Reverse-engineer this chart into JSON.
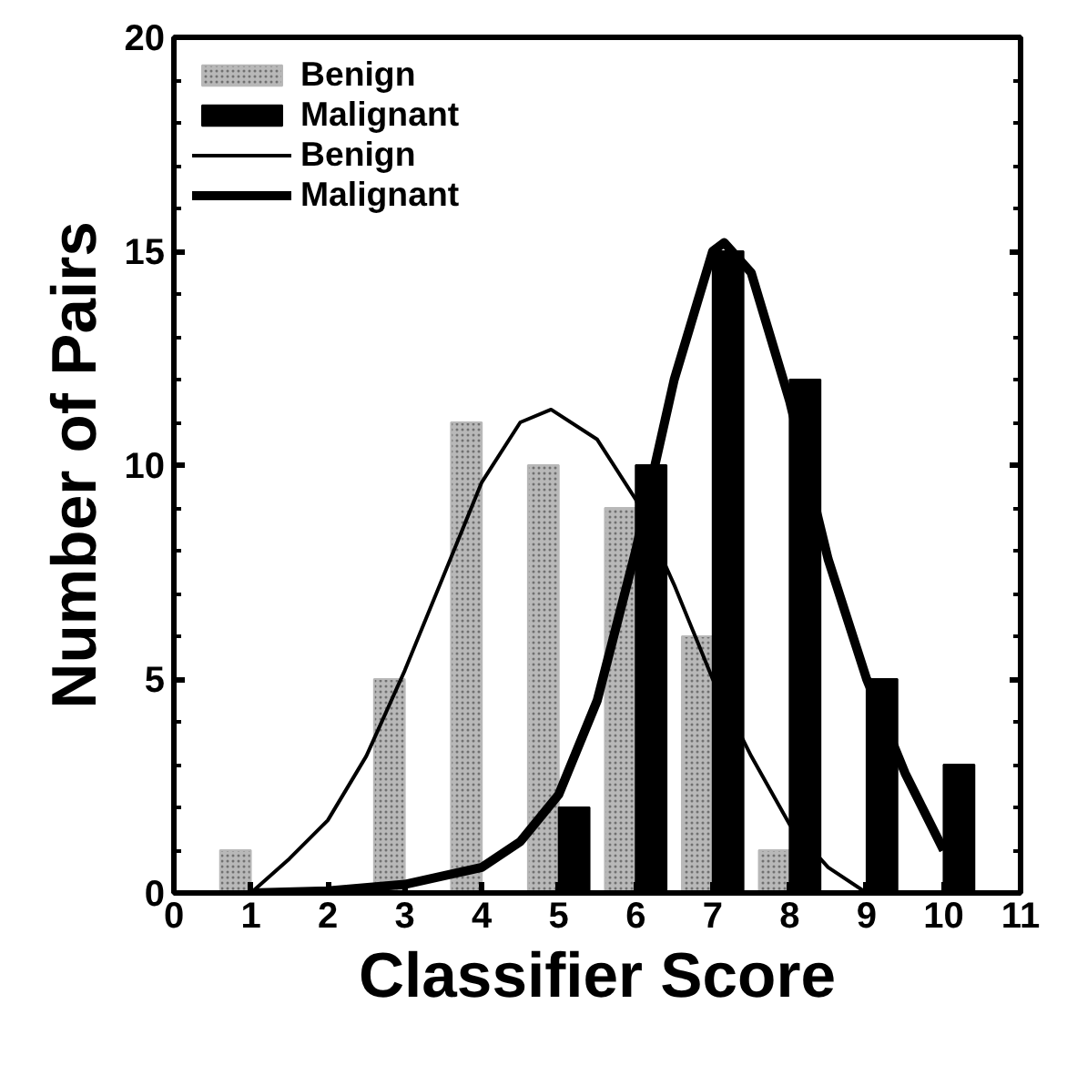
{
  "chart_data": {
    "type": "bar",
    "xlabel": "Classifier Score",
    "ylabel": "Number of Pairs",
    "xlim": [
      0,
      11
    ],
    "xticks": [
      0,
      1,
      2,
      3,
      4,
      5,
      6,
      7,
      8,
      9,
      10,
      11
    ],
    "ylim": [
      0,
      20
    ],
    "yticks": [
      0,
      5,
      10,
      15,
      20
    ],
    "grid": false,
    "legend": "top left",
    "series": [
      {
        "name": "Benign",
        "color": "#b8b8b8",
        "x": [
          1,
          2,
          3,
          4,
          5,
          6,
          7,
          8
        ],
        "values": [
          1,
          0,
          5,
          11,
          10,
          9,
          6,
          1
        ]
      },
      {
        "name": "Malignant",
        "color": "#000000",
        "x": [
          5,
          6,
          7,
          8,
          9,
          10
        ],
        "values": [
          2,
          10,
          15,
          12,
          5,
          3
        ]
      },
      {
        "name": "Benign",
        "type": "line",
        "color": "#000000",
        "x": [
          1,
          1.5,
          2,
          2.5,
          3,
          3.5,
          4,
          4.5,
          4.9,
          5.5,
          6,
          6.5,
          7,
          7.5,
          8,
          8.5,
          9
        ],
        "values": [
          0,
          0.8,
          1.7,
          3.2,
          5.2,
          7.4,
          9.6,
          11,
          11.3,
          10.6,
          9.2,
          7.2,
          5,
          3.2,
          1.6,
          0.6,
          0
        ]
      },
      {
        "name": "Malignant",
        "type": "line",
        "color": "#000000",
        "x": [
          1,
          2,
          3,
          4,
          4.5,
          5,
          5.5,
          6,
          6.5,
          7,
          7.15,
          7.5,
          8,
          8.5,
          9,
          9.5,
          10
        ],
        "values": [
          0,
          0.05,
          0.2,
          0.6,
          1.2,
          2.3,
          4.5,
          8,
          12,
          15,
          15.2,
          14.5,
          11.5,
          7.8,
          5,
          2.8,
          1
        ]
      }
    ]
  }
}
